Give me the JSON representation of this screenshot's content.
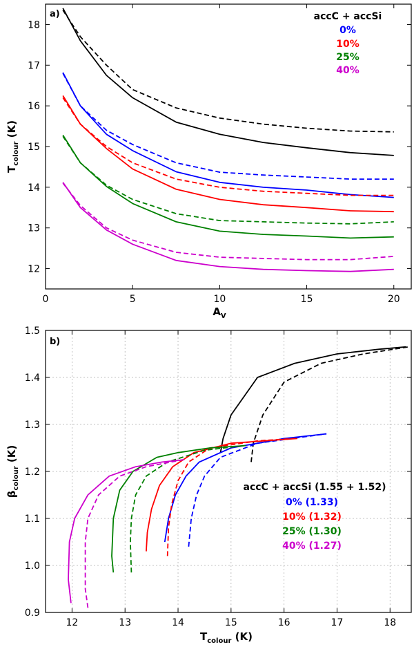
{
  "chart_data": [
    {
      "type": "line",
      "panel_label": "a)",
      "xlabel": "A",
      "xlabel_sub": "V",
      "ylabel": "T",
      "ylabel_sub": "colour",
      "ylabel_unit": " (K)",
      "xlim": [
        0,
        21
      ],
      "ylim": [
        11.5,
        18.5
      ],
      "xticks": [
        0,
        5,
        10,
        15,
        20
      ],
      "yticks": [
        12,
        13,
        14,
        15,
        16,
        17,
        18
      ],
      "grid": false,
      "legend": {
        "title": "accC + accSi",
        "items": [
          {
            "label": "0%",
            "color": "#0000ff"
          },
          {
            "label": "10%",
            "color": "#ff0000"
          },
          {
            "label": "25%",
            "color": "#008000"
          },
          {
            "label": "40%",
            "color": "#cc00cc"
          }
        ]
      },
      "series": [
        {
          "name": "accC+accSi solid",
          "color": "#000000",
          "dash": false,
          "x": [
            1,
            2,
            3.5,
            5,
            7.5,
            10,
            12.5,
            15,
            17.5,
            20
          ],
          "y": [
            18.4,
            17.6,
            16.75,
            16.2,
            15.6,
            15.3,
            15.1,
            14.97,
            14.85,
            14.78
          ]
        },
        {
          "name": "accC+accSi dashed",
          "color": "#000000",
          "dash": true,
          "x": [
            1,
            2,
            3.5,
            5,
            7.5,
            10,
            12.5,
            15,
            17.5,
            20
          ],
          "y": [
            18.35,
            17.7,
            17.0,
            16.4,
            15.95,
            15.7,
            15.55,
            15.45,
            15.38,
            15.36
          ]
        },
        {
          "name": "0% solid",
          "color": "#0000ff",
          "dash": false,
          "x": [
            1,
            2,
            3.5,
            5,
            7.5,
            10,
            12.5,
            15,
            17.5,
            20
          ],
          "y": [
            16.82,
            16.0,
            15.3,
            14.9,
            14.38,
            14.12,
            14.0,
            13.93,
            13.82,
            13.75
          ]
        },
        {
          "name": "0% dashed",
          "color": "#0000ff",
          "dash": true,
          "x": [
            1,
            2,
            3.5,
            5,
            7.5,
            10,
            12.5,
            15,
            17.5,
            20
          ],
          "y": [
            16.8,
            16.0,
            15.4,
            15.05,
            14.6,
            14.37,
            14.3,
            14.25,
            14.2,
            14.2
          ]
        },
        {
          "name": "10% solid",
          "color": "#ff0000",
          "dash": false,
          "x": [
            1,
            2,
            3.5,
            5,
            7.5,
            10,
            12.5,
            15,
            17.5,
            20
          ],
          "y": [
            16.25,
            15.55,
            14.95,
            14.45,
            13.95,
            13.7,
            13.57,
            13.5,
            13.42,
            13.4
          ]
        },
        {
          "name": "10% dashed",
          "color": "#ff0000",
          "dash": true,
          "x": [
            1,
            2,
            3.5,
            5,
            7.5,
            10,
            12.5,
            15,
            17.5,
            20
          ],
          "y": [
            16.2,
            15.55,
            15.0,
            14.6,
            14.2,
            14.0,
            13.9,
            13.85,
            13.8,
            13.8
          ]
        },
        {
          "name": "25% solid",
          "color": "#008000",
          "dash": false,
          "x": [
            1,
            2,
            3.5,
            5,
            7.5,
            10,
            12.5,
            15,
            17.5,
            20
          ],
          "y": [
            15.28,
            14.6,
            14.02,
            13.6,
            13.15,
            12.92,
            12.84,
            12.8,
            12.75,
            12.78
          ]
        },
        {
          "name": "25% dashed",
          "color": "#008000",
          "dash": true,
          "x": [
            1,
            2,
            3.5,
            5,
            7.5,
            10,
            12.5,
            15,
            17.5,
            20
          ],
          "y": [
            15.25,
            14.6,
            14.05,
            13.7,
            13.35,
            13.18,
            13.15,
            13.12,
            13.1,
            13.15
          ]
        },
        {
          "name": "40% solid",
          "color": "#cc00cc",
          "dash": false,
          "x": [
            1,
            2,
            3.5,
            5,
            7.5,
            10,
            12.5,
            15,
            17.5,
            20
          ],
          "y": [
            14.12,
            13.5,
            12.95,
            12.6,
            12.2,
            12.05,
            11.98,
            11.95,
            11.93,
            11.98
          ]
        },
        {
          "name": "40% dashed",
          "color": "#cc00cc",
          "dash": true,
          "x": [
            1,
            2,
            3.5,
            5,
            7.5,
            10,
            12.5,
            15,
            17.5,
            20
          ],
          "y": [
            14.1,
            13.55,
            13.0,
            12.7,
            12.4,
            12.28,
            12.25,
            12.22,
            12.22,
            12.3
          ]
        }
      ]
    },
    {
      "type": "line",
      "panel_label": "b)",
      "xlabel": "T",
      "xlabel_sub": "colour",
      "xlabel_unit": " (K)",
      "ylabel": "β",
      "ylabel_sub": "colour",
      "ylabel_unit": " (K)",
      "xlim": [
        11.5,
        18.4
      ],
      "ylim": [
        0.9,
        1.5
      ],
      "xticks": [
        12,
        13,
        14,
        15,
        16,
        17,
        18
      ],
      "yticks": [
        0.9,
        1.0,
        1.1,
        1.2,
        1.3,
        1.4,
        1.5
      ],
      "ytick_labels": [
        "0.9",
        "1.0",
        "1.1",
        "1.2",
        "1.3",
        "1.4",
        "1.5"
      ],
      "grid": true,
      "legend": {
        "title": "accC + accSi (1.55 + 1.52)",
        "items": [
          {
            "label": "0% (1.33)",
            "color": "#0000ff"
          },
          {
            "label": "10% (1.32)",
            "color": "#ff0000"
          },
          {
            "label": "25% (1.30)",
            "color": "#008000"
          },
          {
            "label": "40% (1.27)",
            "color": "#cc00cc"
          }
        ]
      },
      "series": [
        {
          "name": "accC+accSi solid",
          "color": "#000000",
          "dash": false,
          "x": [
            14.8,
            14.85,
            15.0,
            15.5,
            16.2,
            17.0,
            17.8,
            18.3
          ],
          "y": [
            1.24,
            1.27,
            1.32,
            1.4,
            1.43,
            1.45,
            1.46,
            1.465
          ]
        },
        {
          "name": "accC+accSi dashed",
          "color": "#000000",
          "dash": true,
          "x": [
            15.38,
            15.42,
            15.6,
            16.0,
            16.7,
            17.5,
            18.35
          ],
          "y": [
            1.22,
            1.26,
            1.32,
            1.39,
            1.43,
            1.45,
            1.465
          ]
        },
        {
          "name": "0% solid",
          "color": "#0000ff",
          "dash": false,
          "x": [
            13.75,
            13.82,
            13.95,
            14.15,
            14.4,
            15.0,
            16.0,
            16.8
          ],
          "y": [
            1.05,
            1.1,
            1.15,
            1.19,
            1.22,
            1.25,
            1.27,
            1.28
          ]
        },
        {
          "name": "0% dashed",
          "color": "#0000ff",
          "dash": true,
          "x": [
            14.2,
            14.25,
            14.35,
            14.5,
            14.8,
            15.5,
            16.8
          ],
          "y": [
            1.04,
            1.1,
            1.15,
            1.19,
            1.23,
            1.26,
            1.28
          ]
        },
        {
          "name": "10% solid",
          "color": "#ff0000",
          "dash": false,
          "x": [
            13.4,
            13.42,
            13.5,
            13.65,
            13.9,
            14.3,
            15.0,
            16.25
          ],
          "y": [
            1.03,
            1.07,
            1.12,
            1.17,
            1.21,
            1.24,
            1.26,
            1.27
          ]
        },
        {
          "name": "10% dashed",
          "color": "#ff0000",
          "dash": true,
          "x": [
            13.8,
            13.82,
            13.88,
            14.0,
            14.2,
            14.6,
            15.5,
            16.2
          ],
          "y": [
            1.02,
            1.08,
            1.13,
            1.18,
            1.22,
            1.25,
            1.265,
            1.27
          ]
        },
        {
          "name": "25% solid",
          "color": "#008000",
          "dash": false,
          "x": [
            12.78,
            12.75,
            12.78,
            12.9,
            13.15,
            13.6,
            14.0,
            14.6,
            15.28
          ],
          "y": [
            0.985,
            1.02,
            1.1,
            1.16,
            1.2,
            1.23,
            1.24,
            1.25,
            1.255
          ]
        },
        {
          "name": "25% dashed",
          "color": "#008000",
          "dash": true,
          "x": [
            13.12,
            13.1,
            13.12,
            13.2,
            13.4,
            13.8,
            14.5,
            15.25
          ],
          "y": [
            0.985,
            1.05,
            1.1,
            1.15,
            1.19,
            1.22,
            1.245,
            1.255
          ]
        },
        {
          "name": "40% solid",
          "color": "#cc00cc",
          "dash": false,
          "x": [
            11.98,
            11.93,
            11.95,
            12.05,
            12.3,
            12.7,
            13.2,
            13.7,
            14.12
          ],
          "y": [
            0.92,
            0.97,
            1.05,
            1.1,
            1.15,
            1.19,
            1.21,
            1.22,
            1.225
          ]
        },
        {
          "name": "40% dashed",
          "color": "#cc00cc",
          "dash": true,
          "x": [
            12.3,
            12.25,
            12.25,
            12.3,
            12.5,
            12.9,
            13.4,
            14.1
          ],
          "y": [
            0.91,
            0.95,
            1.05,
            1.1,
            1.15,
            1.19,
            1.21,
            1.225
          ]
        }
      ]
    }
  ]
}
